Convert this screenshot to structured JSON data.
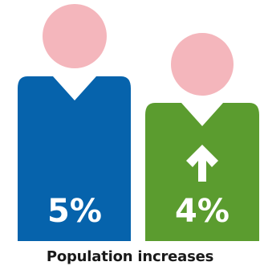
{
  "figures": [
    {
      "name": "left-person",
      "percent_label": "5%",
      "body_color": "#0663AC",
      "head_color": "#F4B6BC"
    },
    {
      "name": "right-person",
      "percent_label": "4%",
      "body_color": "#5B9C2F",
      "head_color": "#F4B6BC",
      "arrow_icon": "up-arrow-icon"
    }
  ],
  "caption": "Population increases"
}
